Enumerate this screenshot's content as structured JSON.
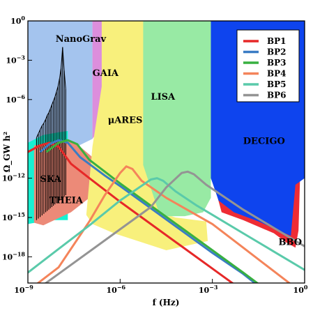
{
  "chart_data": {
    "type": "line",
    "title": "",
    "xlabel": "f (Hz)",
    "ylabel": "Ω_GW h²",
    "xscale": "log",
    "yscale": "log",
    "xlim_log10": [
      -9,
      0
    ],
    "ylim_log10": [
      -20,
      0
    ],
    "x_ticks": [
      {
        "exp": -9,
        "label": "10",
        "sup": "−9"
      },
      {
        "exp": -6,
        "label": "10",
        "sup": "−6"
      },
      {
        "exp": -3,
        "label": "10",
        "sup": "−3"
      },
      {
        "exp": 0,
        "label": "10",
        "sup": "0"
      }
    ],
    "y_ticks": [
      {
        "exp": 0,
        "label": "10",
        "sup": "0"
      },
      {
        "exp": -3,
        "label": "10",
        "sup": "−3"
      },
      {
        "exp": -6,
        "label": "10",
        "sup": "−6"
      },
      {
        "exp": -12,
        "label": "10",
        "sup": "−12"
      },
      {
        "exp": -15,
        "label": "10",
        "sup": "−15"
      },
      {
        "exp": -18,
        "label": "10",
        "sup": "−18"
      }
    ],
    "grid": false,
    "legend_position": "top-right",
    "sensitivity_regions": [
      {
        "name": "NanoGrav",
        "color": "#a4c4ee",
        "label_at": [
          -8.1,
          -1.6
        ],
        "polygon": [
          [
            -9,
            0
          ],
          [
            -6.9,
            0
          ],
          [
            -6.9,
            -9
          ],
          [
            -8.2,
            -10.5
          ],
          [
            -9,
            -11
          ]
        ]
      },
      {
        "name": "GAIA",
        "color": "#dc8edc",
        "label_at": [
          -6.9,
          -4.2
        ],
        "polygon": [
          [
            -6.9,
            0
          ],
          [
            -6.45,
            0
          ],
          [
            -6.35,
            -5
          ],
          [
            -6.6,
            -8
          ],
          [
            -6.9,
            -9
          ]
        ]
      },
      {
        "name": "SKA",
        "color": "#17f0d2",
        "label_at": [
          -8.6,
          -12.3
        ],
        "polygon": [
          [
            -9,
            -9.3
          ],
          [
            -8.5,
            -8.7
          ],
          [
            -8,
            -8.5
          ],
          [
            -7.7,
            -8.4
          ],
          [
            -7.7,
            -15.2
          ],
          [
            -8.3,
            -15.2
          ],
          [
            -9,
            -15.5
          ]
        ]
      },
      {
        "name": "THEIA",
        "color": "#ec8a78",
        "label_at": [
          -8.3,
          -13.9
        ],
        "polygon": [
          [
            -8.8,
            -9.5
          ],
          [
            -8.1,
            -9.2
          ],
          [
            -7.5,
            -9.2
          ],
          [
            -6.7,
            -10.8
          ],
          [
            -6.5,
            -12
          ],
          [
            -7,
            -13.5
          ],
          [
            -7.6,
            -14.6
          ],
          [
            -8.5,
            -15.6
          ],
          [
            -8.8,
            -15.4
          ]
        ]
      },
      {
        "name": "μARES",
        "color": "#f8f07c",
        "label_at": [
          -6.4,
          -7.8
        ],
        "polygon": [
          [
            -6.6,
            0
          ],
          [
            -5.25,
            0
          ],
          [
            -4.7,
            -14.6
          ],
          [
            -4.2,
            -15
          ],
          [
            -3.2,
            -15.3
          ],
          [
            -3.15,
            -16.8
          ],
          [
            -4.5,
            -17.5
          ],
          [
            -6.2,
            -16.2
          ],
          [
            -6.9,
            -15.5
          ],
          [
            -7.1,
            -14.8
          ],
          [
            -6.9,
            -9.6
          ],
          [
            -6.6,
            -5
          ]
        ]
      },
      {
        "name": "LISA",
        "color": "#98eaa4",
        "label_at": [
          -5.0,
          -6.0
        ],
        "polygon": [
          [
            -5.25,
            0
          ],
          [
            -3.05,
            0
          ],
          [
            -3.05,
            -13.5
          ],
          [
            -3.3,
            -14.6
          ],
          [
            -3.9,
            -14.9
          ],
          [
            -4.7,
            -14.9
          ],
          [
            -5.25,
            -11
          ]
        ]
      },
      {
        "name": "BBO",
        "color": "#ee2c34",
        "label_at": [
          -0.85,
          -17.1
        ],
        "polygon": [
          [
            -3.0,
            -12
          ],
          [
            -2.7,
            -14.6
          ],
          [
            -2.0,
            -15.2
          ],
          [
            -1.0,
            -16.2
          ],
          [
            -0.6,
            -16.9
          ],
          [
            -0.3,
            -17.3
          ],
          [
            -0.2,
            -16
          ],
          [
            -0.15,
            -12
          ],
          [
            -0.15,
            -10.5
          ],
          [
            -1.2,
            -11
          ],
          [
            -2.5,
            -11.5
          ]
        ]
      },
      {
        "name": "DECIGO",
        "color": "#0e44ee",
        "label_at": [
          -2.0,
          -9.4
        ],
        "polygon": [
          [
            -3.05,
            0
          ],
          [
            0,
            0
          ],
          [
            0,
            -12
          ],
          [
            -0.3,
            -12.5
          ],
          [
            -0.45,
            -16.4
          ],
          [
            -0.75,
            -16.1
          ],
          [
            -1.5,
            -15.3
          ],
          [
            -2.3,
            -14.6
          ],
          [
            -2.8,
            -13.7
          ],
          [
            -3.05,
            -12
          ]
        ]
      }
    ],
    "series": [
      {
        "name": "BP1",
        "color": "#e62828",
        "points": [
          [
            -9,
            -10
          ],
          [
            -8.6,
            -9.5
          ],
          [
            -8.3,
            -9.3
          ],
          [
            -8.0,
            -9.6
          ],
          [
            -7.6,
            -10.9
          ],
          [
            -7,
            -12
          ],
          [
            -6,
            -13.8
          ],
          [
            -5,
            -15.5
          ],
          [
            -4,
            -17.2
          ],
          [
            -3,
            -18.9
          ],
          [
            -2,
            -20.6
          ]
        ]
      },
      {
        "name": "BP2",
        "color": "#3a7cc4",
        "points": [
          [
            -8.6,
            -10
          ],
          [
            -8.3,
            -9.4
          ],
          [
            -8.0,
            -9.1
          ],
          [
            -7.7,
            -9.3
          ],
          [
            -7.3,
            -10.4
          ],
          [
            -6.5,
            -11.8
          ],
          [
            -6,
            -12.6
          ],
          [
            -5,
            -14.3
          ],
          [
            -4,
            -16
          ],
          [
            -3,
            -17.7
          ],
          [
            -2,
            -19.3
          ],
          [
            -1.3,
            -20.6
          ]
        ]
      },
      {
        "name": "BP3",
        "color": "#38b040",
        "points": [
          [
            -8.4,
            -10
          ],
          [
            -8.0,
            -9.3
          ],
          [
            -7.7,
            -9.1
          ],
          [
            -7.4,
            -9.4
          ],
          [
            -7.0,
            -10.6
          ],
          [
            -6.5,
            -11.5
          ],
          [
            -6,
            -12.4
          ],
          [
            -5,
            -14.1
          ],
          [
            -4,
            -15.8
          ],
          [
            -3,
            -17.5
          ],
          [
            -2,
            -19.2
          ],
          [
            -1.2,
            -20.6
          ]
        ]
      },
      {
        "name": "BP4",
        "color": "#f4845a",
        "points": [
          [
            -9,
            -20.6
          ],
          [
            -8,
            -18.8
          ],
          [
            -7,
            -15.3
          ],
          [
            -6.5,
            -13.3
          ],
          [
            -6,
            -11.6
          ],
          [
            -5.8,
            -11.1
          ],
          [
            -5.6,
            -11.3
          ],
          [
            -5.3,
            -12.2
          ],
          [
            -4.5,
            -13.5
          ],
          [
            -3,
            -15.5
          ],
          [
            -2,
            -17.3
          ],
          [
            -1,
            -19.1
          ],
          [
            0,
            -20.9
          ]
        ]
      },
      {
        "name": "BP5",
        "color": "#5acaaa",
        "points": [
          [
            -9,
            -19.2
          ],
          [
            -8,
            -17.4
          ],
          [
            -7,
            -15.6
          ],
          [
            -6,
            -13.7
          ],
          [
            -5,
            -12.1
          ],
          [
            -4.8,
            -12
          ],
          [
            -4.6,
            -12.2
          ],
          [
            -4.2,
            -13
          ],
          [
            -3.5,
            -14.1
          ],
          [
            -3,
            -14.8
          ],
          [
            -2,
            -16.2
          ],
          [
            -1,
            -17.6
          ],
          [
            0,
            -19
          ]
        ]
      },
      {
        "name": "BP6",
        "color": "#949494",
        "points": [
          [
            -9,
            -21
          ],
          [
            -8,
            -19.3
          ],
          [
            -7,
            -17.6
          ],
          [
            -6,
            -15.9
          ],
          [
            -5,
            -14.2
          ],
          [
            -4.5,
            -12.7
          ],
          [
            -4,
            -11.6
          ],
          [
            -3.8,
            -11.5
          ],
          [
            -3.6,
            -11.7
          ],
          [
            -3.2,
            -12.5
          ],
          [
            -2,
            -14.4
          ],
          [
            -1,
            -15.8
          ],
          [
            0,
            -17.2
          ]
        ]
      }
    ],
    "nanograv_spikes_x_log10": [
      -8.72,
      -8.66,
      -8.6,
      -8.54,
      -8.48,
      -8.42,
      -8.37,
      -8.32,
      -8.27,
      -8.22,
      -8.17,
      -8.12,
      -8.07,
      -8.02,
      -7.97,
      -7.92,
      -7.87,
      -7.82,
      -7.77
    ],
    "nanograv_spikes_top_log10": [
      -8.9,
      -8.6,
      -8.3,
      -8.0,
      -7.8,
      -7.5,
      -7.2,
      -7.0,
      -6.7,
      -6.4,
      -6.1,
      -5.8,
      -5.4,
      -5.0,
      -4.4,
      -3.6,
      -2.0,
      -3.8,
      -5.2
    ]
  }
}
